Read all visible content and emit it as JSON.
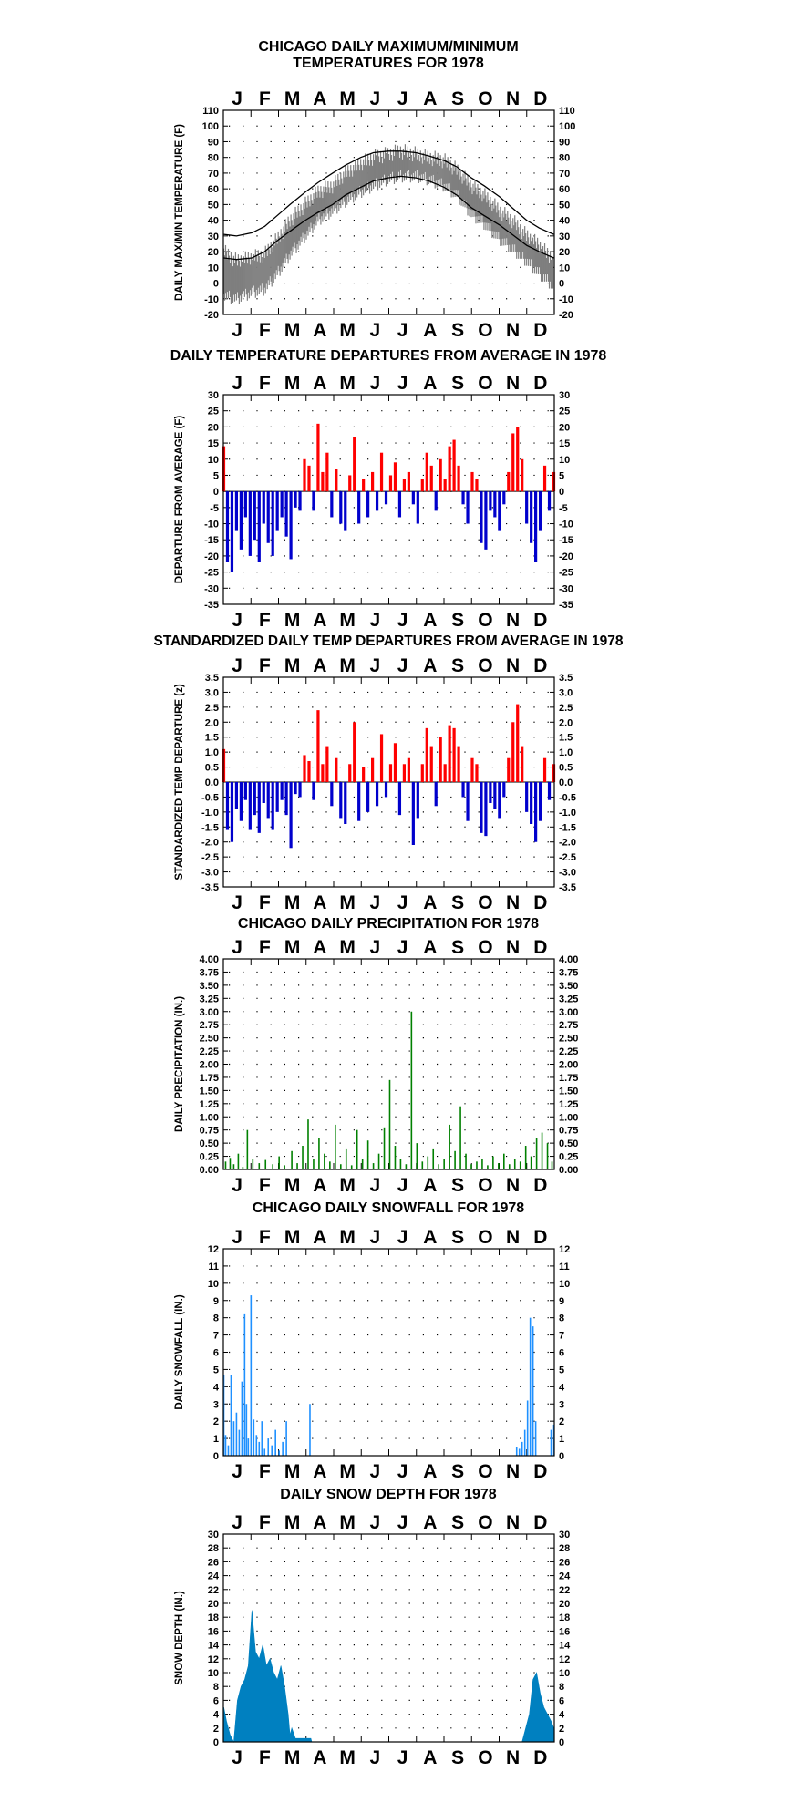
{
  "chart_data": [
    {
      "type": "line",
      "title": "CHICAGO DAILY MAXIMUM/MINIMUM\nTEMPERATURES FOR 1978",
      "ylabel": "DAILY MAX/MIN TEMPERATURE (F)",
      "x_tick_labels": [
        "J",
        "F",
        "M",
        "A",
        "M",
        "J",
        "J",
        "A",
        "S",
        "O",
        "N",
        "D"
      ],
      "ylim": [
        -20,
        110
      ],
      "ytick_step": 10,
      "grid": "dotted",
      "series": [
        {
          "name": "",
          "style": "gray band",
          "color": "#7f7f7f",
          "x": [
            1,
            15,
            32,
            46,
            60,
            74,
            91,
            105,
            121,
            135,
            152,
            166,
            182,
            196,
            213,
            227,
            244,
            258,
            274,
            288,
            305,
            319,
            335,
            349,
            365
          ],
          "values": [
            20,
            14,
            16,
            18,
            28,
            40,
            50,
            58,
            62,
            70,
            76,
            80,
            82,
            84,
            82,
            80,
            78,
            72,
            62,
            56,
            46,
            40,
            30,
            24,
            14
          ],
          "low": [
            -8,
            -10,
            -6,
            -4,
            6,
            18,
            30,
            40,
            46,
            52,
            58,
            62,
            66,
            68,
            68,
            66,
            62,
            56,
            44,
            38,
            28,
            22,
            14,
            6,
            -2
          ]
        },
        {
          "name": "",
          "style": "normal max",
          "color": "#000000",
          "x": [
            1,
            15,
            32,
            46,
            60,
            74,
            91,
            105,
            121,
            135,
            152,
            166,
            182,
            196,
            213,
            227,
            244,
            258,
            274,
            288,
            305,
            319,
            335,
            349,
            365
          ],
          "values": [
            31,
            30,
            32,
            36,
            43,
            50,
            58,
            64,
            70,
            75,
            80,
            83,
            84,
            84,
            83,
            81,
            78,
            74,
            67,
            62,
            55,
            48,
            40,
            35,
            31
          ]
        },
        {
          "name": "",
          "style": "normal min",
          "color": "#000000",
          "x": [
            1,
            15,
            32,
            46,
            60,
            74,
            91,
            105,
            121,
            135,
            152,
            166,
            182,
            196,
            213,
            227,
            244,
            258,
            274,
            288,
            305,
            319,
            335,
            349,
            365
          ],
          "values": [
            16,
            15,
            16,
            20,
            27,
            33,
            40,
            45,
            50,
            56,
            61,
            65,
            67,
            68,
            67,
            65,
            61,
            56,
            48,
            43,
            37,
            31,
            24,
            20,
            16
          ]
        }
      ]
    },
    {
      "type": "bar",
      "title": "DAILY TEMPERATURE DEPARTURES FROM AVERAGE IN 1978",
      "ylabel": "DEPARTURE FROM AVERAGE (F)",
      "x_tick_labels": [
        "J",
        "F",
        "M",
        "A",
        "M",
        "J",
        "J",
        "A",
        "S",
        "O",
        "N",
        "D"
      ],
      "ylim": [
        -35,
        30
      ],
      "ytick_step": 5,
      "grid": "dotted",
      "positive_color": "#ff0000",
      "negative_color": "#0000cc",
      "x": [
        1,
        5,
        10,
        15,
        20,
        25,
        30,
        35,
        40,
        45,
        50,
        55,
        60,
        65,
        70,
        75,
        80,
        85,
        90,
        95,
        100,
        105,
        110,
        115,
        120,
        125,
        130,
        135,
        140,
        145,
        150,
        155,
        160,
        165,
        170,
        175,
        180,
        185,
        190,
        195,
        200,
        205,
        210,
        215,
        220,
        225,
        230,
        235,
        240,
        245,
        250,
        255,
        260,
        265,
        270,
        275,
        280,
        285,
        290,
        295,
        300,
        305,
        310,
        315,
        320,
        325,
        330,
        335,
        340,
        345,
        350,
        355,
        360,
        365
      ],
      "values": [
        14,
        -22,
        -25,
        -12,
        -18,
        -8,
        -20,
        -15,
        -22,
        -10,
        -16,
        -20,
        -12,
        -8,
        -14,
        -21,
        -5,
        -6,
        10,
        8,
        -6,
        21,
        6,
        12,
        -8,
        7,
        -10,
        -12,
        5,
        17,
        -10,
        4,
        -8,
        6,
        -6,
        12,
        -4,
        5,
        9,
        -8,
        4,
        6,
        -4,
        -10,
        4,
        12,
        8,
        -6,
        10,
        4,
        14,
        16,
        8,
        -4,
        -10,
        6,
        4,
        -16,
        -18,
        -6,
        -8,
        -12,
        -4,
        6,
        18,
        20,
        10,
        -10,
        -16,
        -22,
        -12,
        8,
        -6,
        6
      ]
    },
    {
      "type": "bar",
      "title": "STANDARDIZED DAILY TEMP DEPARTURES FROM AVERAGE IN 1978",
      "ylabel": "STANDARDIZED TEMP DEPARTURE (z)",
      "x_tick_labels": [
        "J",
        "F",
        "M",
        "A",
        "M",
        "J",
        "J",
        "A",
        "S",
        "O",
        "N",
        "D"
      ],
      "ylim": [
        -3.5,
        3.5
      ],
      "ytick_step": 0.5,
      "grid": "dotted",
      "positive_color": "#ff0000",
      "negative_color": "#0000cc",
      "x": [
        1,
        5,
        10,
        15,
        20,
        25,
        30,
        35,
        40,
        45,
        50,
        55,
        60,
        65,
        70,
        75,
        80,
        85,
        90,
        95,
        100,
        105,
        110,
        115,
        120,
        125,
        130,
        135,
        140,
        145,
        150,
        155,
        160,
        165,
        170,
        175,
        180,
        185,
        190,
        195,
        200,
        205,
        210,
        215,
        220,
        225,
        230,
        235,
        240,
        245,
        250,
        255,
        260,
        265,
        270,
        275,
        280,
        285,
        290,
        295,
        300,
        305,
        310,
        315,
        320,
        325,
        330,
        335,
        340,
        345,
        350,
        355,
        360,
        365
      ],
      "values": [
        1.1,
        -1.6,
        -2.0,
        -0.9,
        -1.3,
        -0.6,
        -1.6,
        -1.1,
        -1.7,
        -0.7,
        -1.2,
        -1.6,
        -1.0,
        -0.6,
        -1.1,
        -2.2,
        -0.4,
        -0.5,
        0.9,
        0.7,
        -0.6,
        2.4,
        0.6,
        1.2,
        -0.8,
        0.8,
        -1.2,
        -1.4,
        0.6,
        2.0,
        -1.3,
        0.5,
        -1.0,
        0.8,
        -0.8,
        1.6,
        -0.5,
        0.6,
        1.3,
        -1.1,
        0.6,
        0.8,
        -2.1,
        -1.2,
        0.6,
        1.8,
        1.2,
        -0.8,
        1.5,
        0.6,
        1.9,
        1.8,
        1.2,
        -0.5,
        -1.3,
        0.8,
        0.6,
        -1.7,
        -1.8,
        -0.7,
        -0.9,
        -1.2,
        -0.5,
        0.8,
        2.0,
        2.6,
        1.2,
        -1.0,
        -1.4,
        -2.0,
        -1.3,
        0.8,
        -0.6,
        0.6
      ]
    },
    {
      "type": "bar",
      "title": "CHICAGO DAILY PRECIPITATION FOR 1978",
      "ylabel": "DAILY PRECIPITATION (IN.)",
      "x_tick_labels": [
        "J",
        "F",
        "M",
        "A",
        "M",
        "J",
        "J",
        "A",
        "S",
        "O",
        "N",
        "D"
      ],
      "ylim": [
        0,
        4
      ],
      "ytick_step": 0.25,
      "grid": "dotted",
      "color": "#008000",
      "x": [
        3,
        8,
        12,
        17,
        22,
        27,
        33,
        40,
        47,
        55,
        62,
        68,
        76,
        82,
        88,
        94,
        100,
        106,
        112,
        118,
        124,
        130,
        136,
        142,
        148,
        154,
        160,
        166,
        172,
        178,
        184,
        190,
        196,
        202,
        208,
        214,
        220,
        226,
        232,
        238,
        244,
        250,
        256,
        262,
        268,
        274,
        280,
        286,
        292,
        298,
        304,
        310,
        316,
        322,
        328,
        334,
        340,
        346,
        352,
        358,
        363
      ],
      "values": [
        0.15,
        0.22,
        0.1,
        0.3,
        0.05,
        0.75,
        0.2,
        0.12,
        0.18,
        0.1,
        0.25,
        0.08,
        0.35,
        0.12,
        0.45,
        0.95,
        0.2,
        0.6,
        0.3,
        0.15,
        0.85,
        0.1,
        0.4,
        0.08,
        0.75,
        0.2,
        0.55,
        0.12,
        0.3,
        0.8,
        1.7,
        0.45,
        0.2,
        0.1,
        3.0,
        0.5,
        0.15,
        0.25,
        0.4,
        0.1,
        0.2,
        0.85,
        0.35,
        1.2,
        0.3,
        0.1,
        0.15,
        0.2,
        0.08,
        0.25,
        0.12,
        0.3,
        0.1,
        0.2,
        0.15,
        0.45,
        0.25,
        0.6,
        0.7,
        0.5,
        0.15
      ]
    },
    {
      "type": "bar",
      "title": "CHICAGO DAILY SNOWFALL FOR 1978",
      "ylabel": "DAILY SNOWFALL (IN.)",
      "x_tick_labels": [
        "J",
        "F",
        "M",
        "A",
        "M",
        "J",
        "J",
        "A",
        "S",
        "O",
        "N",
        "D"
      ],
      "ylim": [
        0,
        12
      ],
      "ytick_step": 1,
      "grid": "dotted",
      "color": "#1e90ff",
      "x": [
        1,
        3,
        6,
        9,
        12,
        15,
        18,
        21,
        24,
        26,
        28,
        31,
        34,
        37,
        40,
        43,
        46,
        50,
        54,
        58,
        62,
        66,
        70,
        96,
        324,
        327,
        330,
        333,
        336,
        339,
        342,
        345,
        362,
        365
      ],
      "values": [
        4.7,
        1.2,
        0.6,
        4.7,
        2.0,
        2.5,
        1.5,
        4.3,
        8.2,
        3.0,
        1.0,
        9.3,
        2.1,
        1.2,
        0.8,
        2.0,
        0.4,
        1.0,
        0.6,
        1.5,
        0.3,
        0.8,
        2.0,
        3.0,
        0.5,
        0.4,
        0.8,
        1.5,
        3.2,
        8.0,
        7.5,
        2.0,
        1.5,
        1.8
      ]
    },
    {
      "type": "area",
      "title": "DAILY SNOW DEPTH FOR 1978",
      "ylabel": "SNOW DEPTH (IN.)",
      "x_tick_labels": [
        "J",
        "F",
        "M",
        "A",
        "M",
        "J",
        "J",
        "A",
        "S",
        "O",
        "N",
        "D"
      ],
      "ylim": [
        0,
        30
      ],
      "ytick_step": 2,
      "grid": "dotted",
      "color": "#0080c0",
      "x": [
        1,
        4,
        8,
        12,
        16,
        20,
        24,
        28,
        32,
        36,
        40,
        44,
        48,
        52,
        56,
        60,
        64,
        68,
        72,
        74,
        76,
        80,
        90,
        95,
        97,
        98,
        300,
        330,
        334,
        338,
        342,
        346,
        350,
        354,
        358,
        362,
        365
      ],
      "values": [
        5,
        3,
        1,
        0,
        6,
        8,
        9,
        11,
        19,
        13,
        12,
        14,
        11,
        12,
        10,
        9,
        11,
        8,
        4,
        1,
        2,
        0.5,
        0.5,
        0.5,
        0.5,
        0,
        0,
        0,
        2,
        4,
        9,
        10,
        7,
        5,
        4,
        3,
        2
      ]
    }
  ]
}
